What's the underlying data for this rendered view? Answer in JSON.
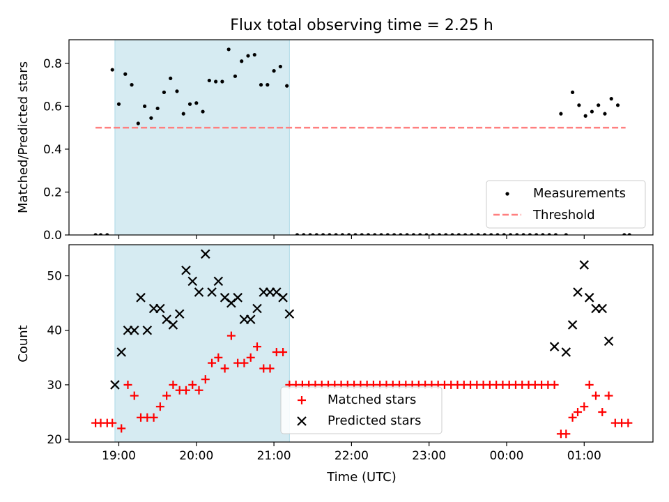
{
  "title": "Flux total observing time = 2.25 h",
  "colors": {
    "band": "#add8e6",
    "measurement": "#000000",
    "threshold": "#ff7f7f",
    "matched": "#ff0000",
    "predicted": "#000000"
  },
  "chart_data": [
    {
      "type": "scatter",
      "ylabel": "Matched/Predicted stars",
      "xlabel": "",
      "ylim": [
        0,
        0.91
      ],
      "yticks": [
        0.0,
        0.2,
        0.4,
        0.6,
        0.8
      ],
      "ytick_labels": [
        "0.0",
        "0.2",
        "0.4",
        "0.6",
        "0.8"
      ],
      "show_x_tick_labels": false,
      "shaded_interval": [
        "18:57",
        "21:12"
      ],
      "legend": {
        "placement": "lower-right",
        "entries": [
          {
            "label": "Measurements",
            "marker": "dot"
          },
          {
            "label": "Threshold",
            "marker": "dashed-line"
          }
        ]
      },
      "threshold": {
        "label": "Threshold",
        "value": 0.5,
        "from": "18:42",
        "to": "01:32"
      },
      "series": [
        {
          "name": "Measurements",
          "marker": "dot",
          "points": [
            [
              "18:42",
              0
            ],
            [
              "18:46",
              0
            ],
            [
              "18:51",
              0
            ],
            [
              "18:55",
              0.77
            ],
            [
              "19:00",
              0.61
            ],
            [
              "19:05",
              0.75
            ],
            [
              "19:10",
              0.7
            ],
            [
              "19:15",
              0.52
            ],
            [
              "19:20",
              0.6
            ],
            [
              "19:25",
              0.545
            ],
            [
              "19:30",
              0.59
            ],
            [
              "19:35",
              0.665
            ],
            [
              "19:40",
              0.73
            ],
            [
              "19:45",
              0.67
            ],
            [
              "19:50",
              0.565
            ],
            [
              "19:55",
              0.61
            ],
            [
              "20:00",
              0.615
            ],
            [
              "20:05",
              0.575
            ],
            [
              "20:10",
              0.72
            ],
            [
              "20:15",
              0.715
            ],
            [
              "20:20",
              0.715
            ],
            [
              "20:25",
              0.865
            ],
            [
              "20:30",
              0.74
            ],
            [
              "20:35",
              0.81
            ],
            [
              "20:40",
              0.835
            ],
            [
              "20:45",
              0.84
            ],
            [
              "20:50",
              0.7
            ],
            [
              "20:55",
              0.7
            ],
            [
              "21:00",
              0.765
            ],
            [
              "21:05",
              0.785
            ],
            [
              "21:10",
              0.695
            ],
            [
              "21:18",
              0
            ],
            [
              "21:23",
              0
            ],
            [
              "21:28",
              0
            ],
            [
              "21:33",
              0
            ],
            [
              "21:38",
              0
            ],
            [
              "21:43",
              0
            ],
            [
              "21:48",
              0
            ],
            [
              "21:53",
              0
            ],
            [
              "21:58",
              0
            ],
            [
              "22:03",
              0
            ],
            [
              "22:08",
              0
            ],
            [
              "22:13",
              0
            ],
            [
              "22:18",
              0
            ],
            [
              "22:23",
              0
            ],
            [
              "22:28",
              0
            ],
            [
              "22:33",
              0
            ],
            [
              "22:38",
              0
            ],
            [
              "22:43",
              0
            ],
            [
              "22:48",
              0
            ],
            [
              "22:53",
              0
            ],
            [
              "22:58",
              0
            ],
            [
              "23:03",
              0
            ],
            [
              "23:08",
              0
            ],
            [
              "23:13",
              0
            ],
            [
              "23:18",
              0
            ],
            [
              "23:23",
              0
            ],
            [
              "23:28",
              0
            ],
            [
              "23:33",
              0
            ],
            [
              "23:38",
              0
            ],
            [
              "23:43",
              0
            ],
            [
              "23:48",
              0
            ],
            [
              "23:53",
              0
            ],
            [
              "23:58",
              0
            ],
            [
              "00:03",
              0
            ],
            [
              "00:08",
              0
            ],
            [
              "00:13",
              0
            ],
            [
              "00:18",
              0
            ],
            [
              "00:23",
              0
            ],
            [
              "00:28",
              0
            ],
            [
              "00:33",
              0
            ],
            [
              "00:38",
              0
            ],
            [
              "00:42",
              0.565
            ],
            [
              "00:46",
              0
            ],
            [
              "00:51",
              0.665
            ],
            [
              "00:56",
              0.605
            ],
            [
              "01:01",
              0.555
            ],
            [
              "01:06",
              0.575
            ],
            [
              "01:11",
              0.605
            ],
            [
              "01:16",
              0.565
            ],
            [
              "01:21",
              0.635
            ],
            [
              "01:26",
              0.605
            ],
            [
              "01:31",
              0
            ],
            [
              "01:35",
              0
            ]
          ]
        }
      ]
    },
    {
      "type": "scatter",
      "ylabel": "Count",
      "xlabel": "Time (UTC)",
      "ylim": [
        19.5,
        55.7
      ],
      "yticks": [
        20,
        30,
        40,
        50
      ],
      "ytick_labels": [
        "20",
        "30",
        "40",
        "50"
      ],
      "xticks": [
        "19:00",
        "20:00",
        "21:00",
        "22:00",
        "23:00",
        "00:00",
        "01:00"
      ],
      "xtick_labels": [
        "19:00",
        "20:00",
        "21:00",
        "22:00",
        "23:00",
        "00:00",
        "01:00"
      ],
      "shaded_interval": [
        "18:57",
        "21:12"
      ],
      "legend": {
        "placement": "lower-center",
        "entries": [
          {
            "label": "Matched stars",
            "marker": "plus"
          },
          {
            "label": "Predicted stars",
            "marker": "x"
          }
        ]
      },
      "series": [
        {
          "name": "Matched stars",
          "marker": "plus",
          "points": [
            [
              "18:42",
              23
            ],
            [
              "18:46",
              23
            ],
            [
              "18:51",
              23
            ],
            [
              "18:55",
              23
            ],
            [
              "19:02",
              22
            ],
            [
              "19:07",
              30
            ],
            [
              "19:12",
              28
            ],
            [
              "19:17",
              24
            ],
            [
              "19:22",
              24
            ],
            [
              "19:27",
              24
            ],
            [
              "19:32",
              26
            ],
            [
              "19:37",
              28
            ],
            [
              "19:42",
              30
            ],
            [
              "19:47",
              29
            ],
            [
              "19:52",
              29
            ],
            [
              "19:57",
              30
            ],
            [
              "20:02",
              29
            ],
            [
              "20:07",
              31
            ],
            [
              "20:12",
              34
            ],
            [
              "20:17",
              35
            ],
            [
              "20:22",
              33
            ],
            [
              "20:27",
              39
            ],
            [
              "20:32",
              34
            ],
            [
              "20:37",
              34
            ],
            [
              "20:42",
              35
            ],
            [
              "20:47",
              37
            ],
            [
              "20:52",
              33
            ],
            [
              "20:57",
              33
            ],
            [
              "21:02",
              36
            ],
            [
              "21:07",
              36
            ],
            [
              "21:12",
              30
            ],
            [
              "21:17",
              30
            ],
            [
              "21:22",
              30
            ],
            [
              "21:27",
              30
            ],
            [
              "21:32",
              30
            ],
            [
              "21:37",
              30
            ],
            [
              "21:42",
              30
            ],
            [
              "21:47",
              30
            ],
            [
              "21:52",
              30
            ],
            [
              "21:57",
              30
            ],
            [
              "22:02",
              30
            ],
            [
              "22:07",
              30
            ],
            [
              "22:12",
              30
            ],
            [
              "22:17",
              30
            ],
            [
              "22:22",
              30
            ],
            [
              "22:27",
              30
            ],
            [
              "22:32",
              30
            ],
            [
              "22:37",
              30
            ],
            [
              "22:42",
              30
            ],
            [
              "22:47",
              30
            ],
            [
              "22:52",
              30
            ],
            [
              "22:57",
              30
            ],
            [
              "23:02",
              30
            ],
            [
              "23:07",
              30
            ],
            [
              "23:12",
              30
            ],
            [
              "23:17",
              30
            ],
            [
              "23:22",
              30
            ],
            [
              "23:27",
              30
            ],
            [
              "23:32",
              30
            ],
            [
              "23:37",
              30
            ],
            [
              "23:42",
              30
            ],
            [
              "23:47",
              30
            ],
            [
              "23:52",
              30
            ],
            [
              "23:57",
              30
            ],
            [
              "00:02",
              30
            ],
            [
              "00:07",
              30
            ],
            [
              "00:12",
              30
            ],
            [
              "00:17",
              30
            ],
            [
              "00:22",
              30
            ],
            [
              "00:27",
              30
            ],
            [
              "00:32",
              30
            ],
            [
              "00:37",
              30
            ],
            [
              "00:42",
              21
            ],
            [
              "00:46",
              21
            ],
            [
              "00:51",
              24
            ],
            [
              "00:55",
              25
            ],
            [
              "01:00",
              26
            ],
            [
              "01:04",
              30
            ],
            [
              "01:09",
              28
            ],
            [
              "01:14",
              25
            ],
            [
              "01:19",
              28
            ],
            [
              "01:24",
              23
            ],
            [
              "01:29",
              23
            ],
            [
              "01:34",
              23
            ]
          ]
        },
        {
          "name": "Predicted stars",
          "marker": "x",
          "points": [
            [
              "18:57",
              30
            ],
            [
              "19:02",
              36
            ],
            [
              "19:07",
              40
            ],
            [
              "19:12",
              40
            ],
            [
              "19:17",
              46
            ],
            [
              "19:22",
              40
            ],
            [
              "19:27",
              44
            ],
            [
              "19:32",
              44
            ],
            [
              "19:37",
              42
            ],
            [
              "19:42",
              41
            ],
            [
              "19:47",
              43
            ],
            [
              "19:52",
              51
            ],
            [
              "19:57",
              49
            ],
            [
              "20:02",
              47
            ],
            [
              "20:07",
              54
            ],
            [
              "20:12",
              47
            ],
            [
              "20:17",
              49
            ],
            [
              "20:22",
              46
            ],
            [
              "20:27",
              45
            ],
            [
              "20:32",
              46
            ],
            [
              "20:37",
              42
            ],
            [
              "20:42",
              42
            ],
            [
              "20:47",
              44
            ],
            [
              "20:52",
              47
            ],
            [
              "20:57",
              47
            ],
            [
              "21:02",
              47
            ],
            [
              "21:07",
              46
            ],
            [
              "21:12",
              43
            ],
            [
              "00:37",
              37
            ],
            [
              "00:46",
              36
            ],
            [
              "00:51",
              41
            ],
            [
              "00:55",
              47
            ],
            [
              "01:00",
              52
            ],
            [
              "01:04",
              46
            ],
            [
              "01:09",
              44
            ],
            [
              "01:14",
              44
            ],
            [
              "01:19",
              38
            ]
          ]
        }
      ]
    }
  ]
}
